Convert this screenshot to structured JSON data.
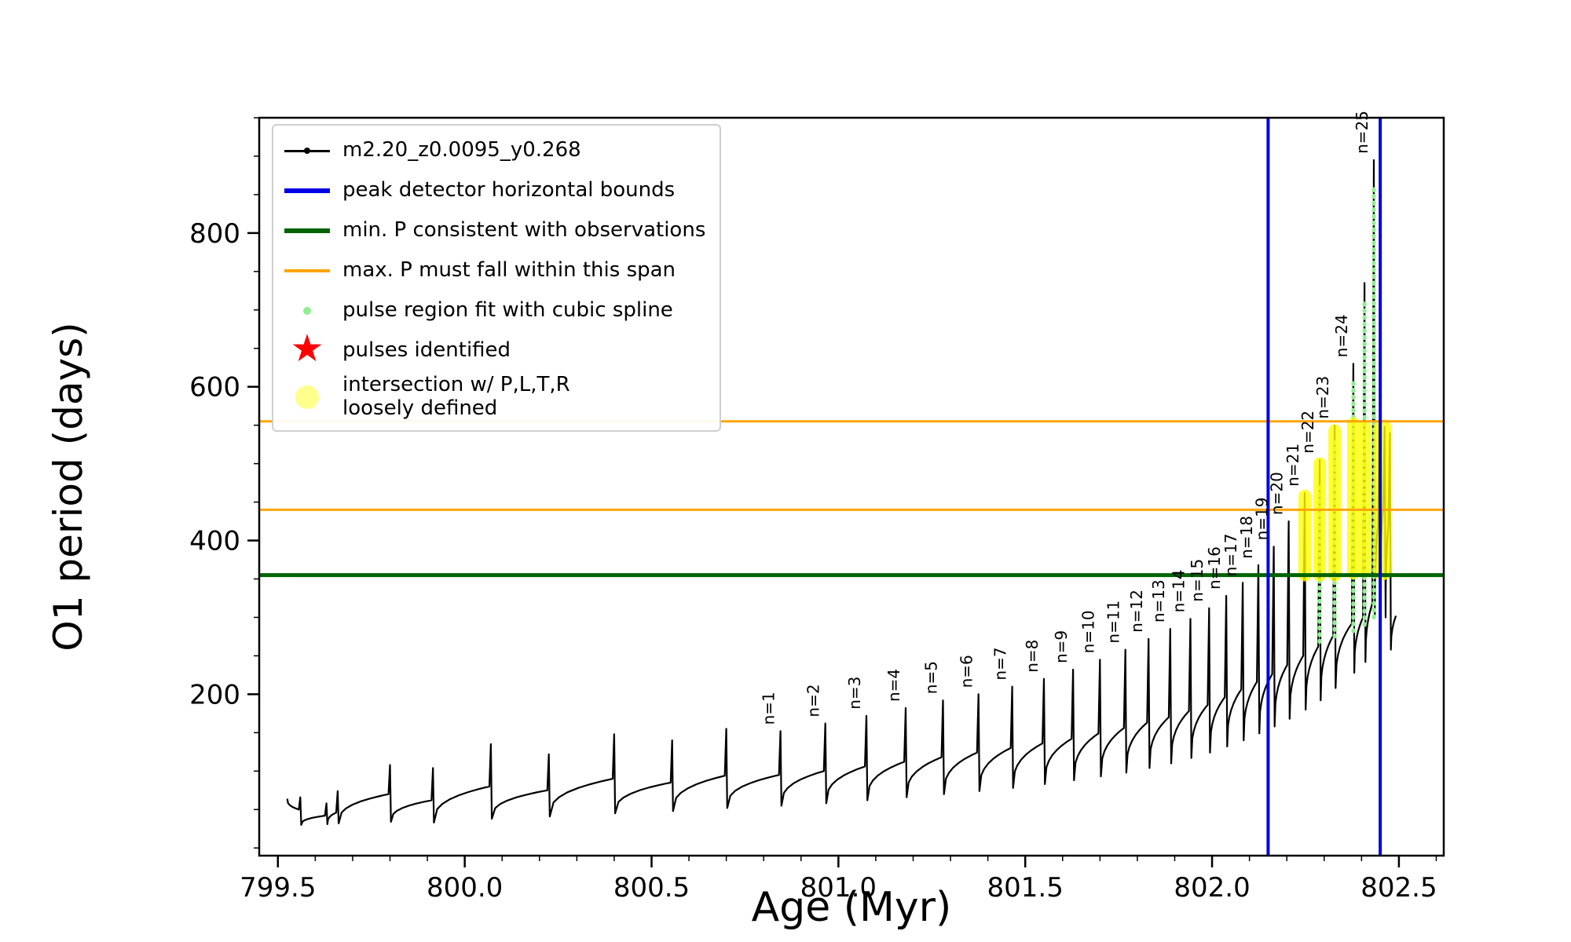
{
  "figure": {
    "xlabel": "Age (Myr)",
    "ylabel": "O1 period (days)",
    "background": "#ffffff"
  },
  "legend": {
    "items": [
      {
        "label": "m2.20_z0.0095_y0.268",
        "marker": "line-dot",
        "color": "#000000"
      },
      {
        "label": "peak detector horizontal bounds",
        "marker": "thick-line",
        "color": "#0000e6"
      },
      {
        "label": "min. P consistent with observations",
        "marker": "thick-line",
        "color": "#006400"
      },
      {
        "label": "max. P must fall within this span",
        "marker": "line",
        "color": "#ffa500"
      },
      {
        "label": "pulse region fit with cubic spline",
        "marker": "dot",
        "color": "#90ee90"
      },
      {
        "label": "pulses identified",
        "marker": "star",
        "color": "#ff0000"
      },
      {
        "label": "intersection w/ P,L,T,R\nloosely defined",
        "marker": "circle",
        "color": "#ffff00"
      }
    ]
  },
  "chart_data": {
    "type": "line",
    "title": "",
    "xlabel": "Age (Myr)",
    "ylabel": "O1 period (days)",
    "series_name": "m2.20_z0.0095_y0.268",
    "xlim": [
      799.45,
      802.62
    ],
    "ylim": [
      -10,
      950
    ],
    "xticks": [
      799.5,
      800.0,
      800.5,
      801.0,
      801.5,
      802.0,
      802.5
    ],
    "yticks": [
      200,
      400,
      600,
      800
    ],
    "x_minor_step": 0.1,
    "y_minor_step": 50,
    "grid": false,
    "legend_position": "upper left",
    "colors": {
      "series": "#000000",
      "peak_bounds": "#0000e6",
      "min_p": "#006400",
      "max_p_span": "#ffa500",
      "spline_fit": "#90ee90",
      "pulses": "#ff0000",
      "intersection": "#ffff00"
    },
    "hlines": [
      {
        "y": 355,
        "color": "#006400",
        "width": 5,
        "name": "min-P-consistent-with-observations"
      },
      {
        "y": 440,
        "color": "#ffa500",
        "width": 3,
        "name": "max-P-span-lower"
      },
      {
        "y": 555,
        "color": "#ffa500",
        "width": 3,
        "name": "max-P-span-upper"
      }
    ],
    "vlines": [
      {
        "x": 802.15,
        "color": "#0000e6",
        "width": 4,
        "name": "peak-detector-left-bound"
      },
      {
        "x": 802.45,
        "color": "#0000e6",
        "width": 4,
        "name": "peak-detector-right-bound"
      }
    ],
    "start": {
      "age": 799.525,
      "value": 64
    },
    "end": {
      "age": 802.492,
      "value": 302
    },
    "pulses": [
      [
        799.56,
        66,
        50,
        30
      ],
      [
        799.63,
        58,
        42,
        31
      ],
      [
        799.66,
        74,
        46,
        32
      ],
      [
        799.8,
        108,
        70,
        34
      ],
      [
        799.915,
        104,
        62,
        33
      ],
      [
        800.07,
        135,
        80,
        38
      ],
      [
        800.225,
        122,
        75,
        41
      ],
      [
        800.4,
        148,
        90,
        45
      ],
      [
        800.555,
        140,
        85,
        48
      ],
      [
        800.7,
        155,
        94,
        52
      ],
      [
        800.845,
        152,
        95,
        55,
        "n=1"
      ],
      [
        800.965,
        162,
        100,
        58,
        "n=2"
      ],
      [
        801.075,
        172,
        106,
        62,
        "n=3"
      ],
      [
        801.18,
        182,
        112,
        66,
        "n=4"
      ],
      [
        801.28,
        192,
        118,
        70,
        "n=5"
      ],
      [
        801.375,
        200,
        124,
        74,
        "n=6"
      ],
      [
        801.465,
        210,
        130,
        78,
        "n=7"
      ],
      [
        801.55,
        220,
        136,
        83,
        "n=8"
      ],
      [
        801.628,
        232,
        142,
        88,
        "n=9"
      ],
      [
        801.7,
        245,
        149,
        93,
        "n=10"
      ],
      [
        801.768,
        258,
        156,
        98,
        "n=11"
      ],
      [
        801.83,
        272,
        163,
        104,
        "n=12"
      ],
      [
        801.888,
        285,
        170,
        110,
        "n=13"
      ],
      [
        801.942,
        298,
        178,
        117,
        "n=14"
      ],
      [
        801.992,
        312,
        186,
        124,
        "n=15"
      ],
      [
        802.038,
        328,
        196,
        132,
        "n=16"
      ],
      [
        802.082,
        345,
        206,
        140,
        "n=17"
      ],
      [
        802.124,
        368,
        216,
        149,
        "n=18"
      ],
      [
        802.165,
        392,
        226,
        158,
        "n=19"
      ],
      [
        802.205,
        425,
        238,
        168,
        "n=20"
      ],
      [
        802.248,
        462,
        250,
        180,
        "n=21"
      ],
      [
        802.288,
        505,
        262,
        192,
        "n=22"
      ],
      [
        802.328,
        550,
        276,
        208,
        "n=23"
      ],
      [
        802.378,
        630,
        292,
        228,
        "n=24"
      ],
      [
        802.408,
        735,
        300,
        242
      ],
      [
        802.433,
        895,
        318,
        300,
        "n=25"
      ],
      [
        802.448,
        557,
        420,
        345
      ],
      [
        802.462,
        548,
        440,
        300
      ],
      [
        802.476,
        540,
        420,
        258
      ]
    ],
    "spline_columns": [
      {
        "age": 802.288,
        "from": 268,
        "to": 470
      },
      {
        "age": 802.328,
        "from": 275,
        "to": 530
      },
      {
        "age": 802.378,
        "from": 282,
        "to": 610
      },
      {
        "age": 802.408,
        "from": 290,
        "to": 710
      },
      {
        "age": 802.433,
        "from": 300,
        "to": 860
      }
    ],
    "yellow_strips": [
      {
        "age": 802.248,
        "from": 355,
        "to": 458
      },
      {
        "age": 802.288,
        "from": 355,
        "to": 500
      },
      {
        "age": 802.328,
        "from": 355,
        "to": 543
      },
      {
        "age": 802.378,
        "from": 358,
        "to": 552
      },
      {
        "age": 802.408,
        "from": 360,
        "to": 548
      }
    ],
    "yellow_blob": {
      "x0": 802.432,
      "x1": 802.48,
      "from": 348,
      "to": 558
    }
  }
}
